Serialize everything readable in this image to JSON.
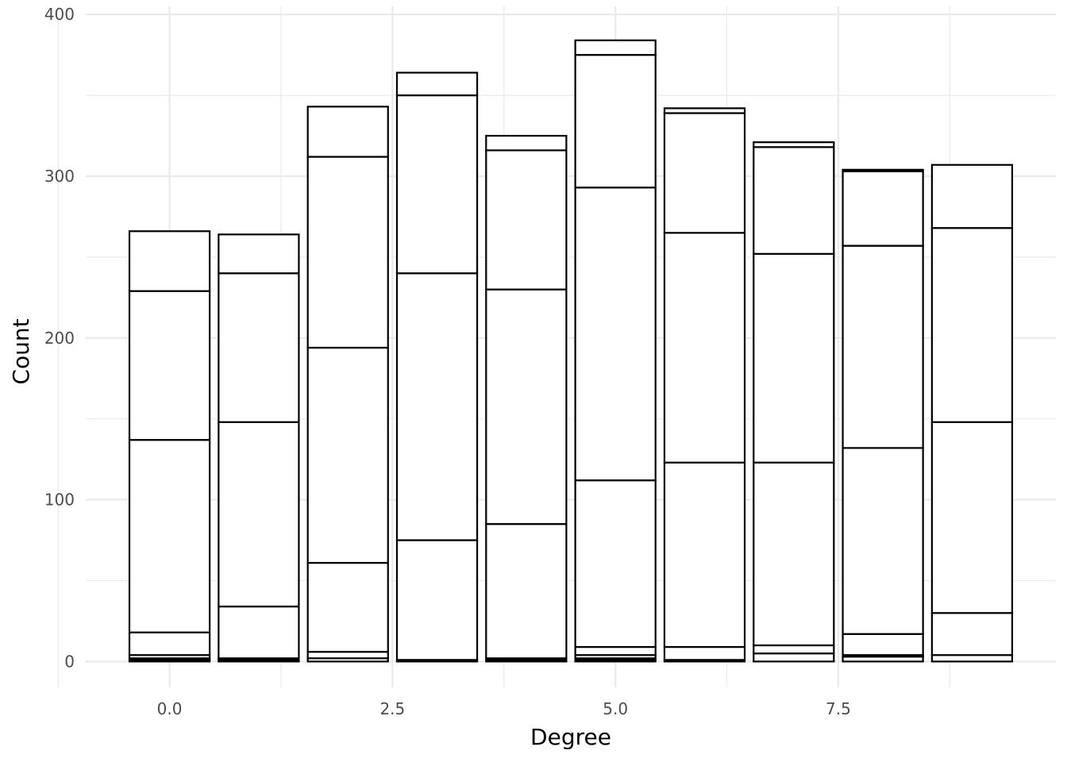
{
  "chart_data": {
    "type": "bar",
    "stacked": true,
    "xlabel": "Degree",
    "ylabel": "Count",
    "x_ticks": [
      0.0,
      2.5,
      5.0,
      7.5
    ],
    "x_tick_labels": [
      "0.0",
      "2.5",
      "5.0",
      "7.5"
    ],
    "y_ticks": [
      0,
      100,
      200,
      300,
      400
    ],
    "y_tick_labels": [
      "0",
      "100",
      "200",
      "300",
      "400"
    ],
    "xlim": [
      -0.94,
      9.94
    ],
    "ylim": [
      -16,
      405
    ],
    "grid": true,
    "bar_width": 0.9,
    "bar_fill": "#ffffff",
    "bar_stroke": "#000000",
    "grid_color": "#ebebeb",
    "bars": [
      {
        "x": 0,
        "cumulative_boundaries": [
          0,
          1,
          2,
          4,
          18,
          137,
          229,
          266
        ]
      },
      {
        "x": 1,
        "cumulative_boundaries": [
          0,
          1,
          2,
          34,
          148,
          240,
          264
        ]
      },
      {
        "x": 2,
        "cumulative_boundaries": [
          0,
          2,
          6,
          61,
          194,
          312,
          343
        ]
      },
      {
        "x": 3,
        "cumulative_boundaries": [
          0,
          1,
          75,
          240,
          350,
          364
        ]
      },
      {
        "x": 4,
        "cumulative_boundaries": [
          0,
          1,
          2,
          85,
          230,
          316,
          325
        ]
      },
      {
        "x": 5,
        "cumulative_boundaries": [
          0,
          1,
          2,
          4,
          9,
          112,
          293,
          375,
          384
        ]
      },
      {
        "x": 6,
        "cumulative_boundaries": [
          0,
          1,
          9,
          123,
          265,
          339,
          342
        ]
      },
      {
        "x": 7,
        "cumulative_boundaries": [
          0,
          5,
          10,
          123,
          252,
          318,
          321
        ]
      },
      {
        "x": 8,
        "cumulative_boundaries": [
          0,
          3,
          4,
          17,
          132,
          257,
          303,
          304
        ]
      },
      {
        "x": 9,
        "cumulative_boundaries": [
          0,
          4,
          30,
          148,
          268,
          307
        ]
      }
    ]
  }
}
